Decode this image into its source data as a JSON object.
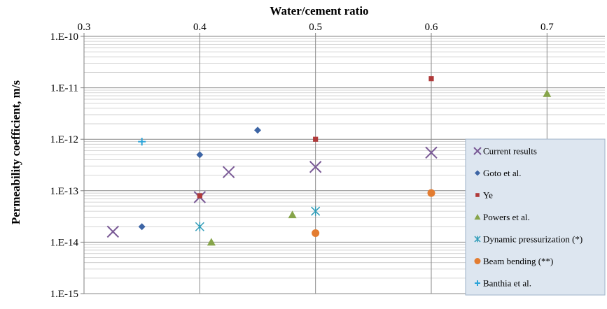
{
  "chart_data": {
    "type": "scatter",
    "title": "",
    "xlabel": "Water/cement  ratio",
    "ylabel": "Permeability coefficient, m/s",
    "x_axis_position": "top",
    "xlim": [
      0.3,
      0.75
    ],
    "x_ticks": [
      "0.3",
      "0.4",
      "0.5",
      "0.6",
      "0.7"
    ],
    "y_scale": "log",
    "ylim": [
      1e-15,
      1e-10
    ],
    "y_ticks": [
      "1.E-10",
      "1.E-11",
      "1.E-12",
      "1.E-13",
      "1.E-14",
      "1.E-15"
    ],
    "grid": true,
    "legend_position": "right",
    "series": [
      {
        "name": "Current results",
        "marker": "x-cross",
        "color": "#7a5a96",
        "points": [
          [
            0.325,
            1.6e-14
          ],
          [
            0.4,
            7.5e-14
          ],
          [
            0.425,
            2.3e-13
          ],
          [
            0.5,
            2.9e-13
          ],
          [
            0.6,
            5.5e-13
          ]
        ]
      },
      {
        "name": "Goto et al.",
        "marker": "diamond",
        "color": "#3d65a5",
        "points": [
          [
            0.35,
            2e-14
          ],
          [
            0.4,
            5e-13
          ],
          [
            0.45,
            1.5e-12
          ]
        ]
      },
      {
        "name": "Ye",
        "marker": "square",
        "color": "#b03a3a",
        "points": [
          [
            0.4,
            8e-14
          ],
          [
            0.5,
            1e-12
          ],
          [
            0.6,
            1.5e-11
          ]
        ]
      },
      {
        "name": "Powers et al.",
        "marker": "triangle",
        "color": "#86a44a",
        "points": [
          [
            0.41,
            1e-14
          ],
          [
            0.48,
            3.4e-14
          ],
          [
            0.7,
            7.7e-12
          ]
        ]
      },
      {
        "name": "Dynamic pressurization (*)",
        "marker": "asterisk",
        "color": "#2e9cb8",
        "points": [
          [
            0.4,
            2e-14
          ],
          [
            0.5,
            4e-14
          ]
        ]
      },
      {
        "name": "Beam bending (**)",
        "marker": "circle",
        "color": "#e37c30",
        "points": [
          [
            0.5,
            1.5e-14
          ],
          [
            0.6,
            9e-14
          ]
        ]
      },
      {
        "name": "Banthia et al.",
        "marker": "plus",
        "color": "#2aa3d8",
        "points": [
          [
            0.35,
            9e-13
          ]
        ]
      }
    ]
  }
}
